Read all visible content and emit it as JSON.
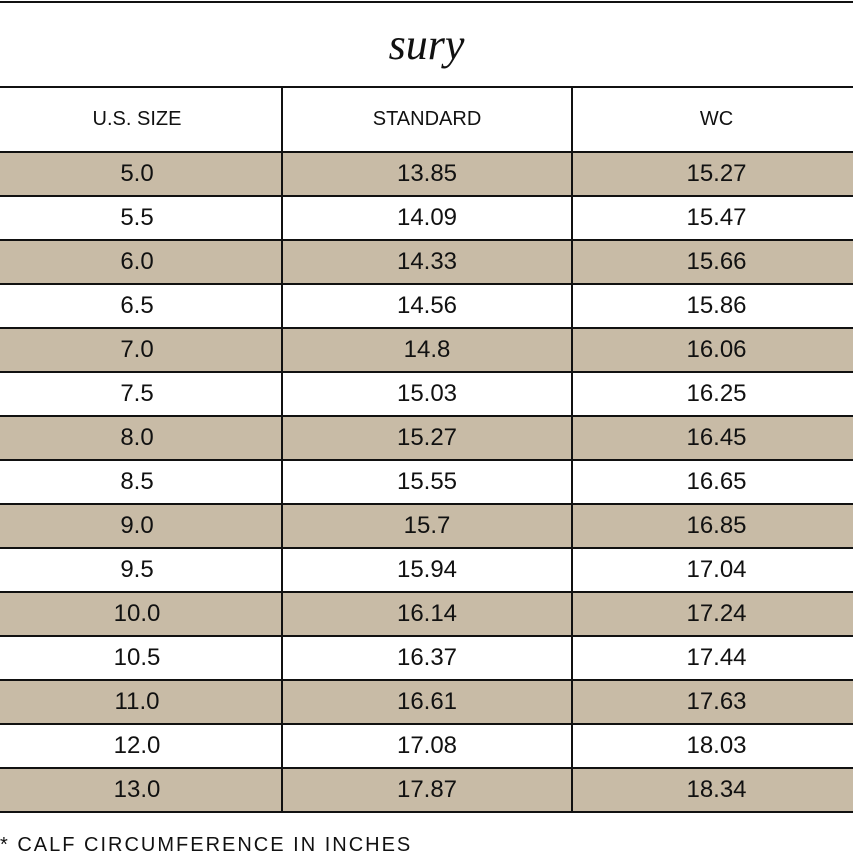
{
  "title": "sury",
  "table": {
    "header": [
      "U.S. SIZE",
      "STANDARD",
      "WC"
    ],
    "rows": [
      [
        "5.0",
        "13.85",
        "15.27"
      ],
      [
        "5.5",
        "14.09",
        "15.47"
      ],
      [
        "6.0",
        "14.33",
        "15.66"
      ],
      [
        "6.5",
        "14.56",
        "15.86"
      ],
      [
        "7.0",
        "14.8",
        "16.06"
      ],
      [
        "7.5",
        "15.03",
        "16.25"
      ],
      [
        "8.0",
        "15.27",
        "16.45"
      ],
      [
        "8.5",
        "15.55",
        "16.65"
      ],
      [
        "9.0",
        "15.7",
        "16.85"
      ],
      [
        "9.5",
        "15.94",
        "17.04"
      ],
      [
        "10.0",
        "16.14",
        "17.24"
      ],
      [
        "10.5",
        "16.37",
        "17.44"
      ],
      [
        "11.0",
        "16.61",
        "17.63"
      ],
      [
        "12.0",
        "17.08",
        "18.03"
      ],
      [
        "13.0",
        "17.87",
        "18.34"
      ]
    ]
  },
  "footnote": "* CALF CIRCUMFERENCE IN INCHES"
}
